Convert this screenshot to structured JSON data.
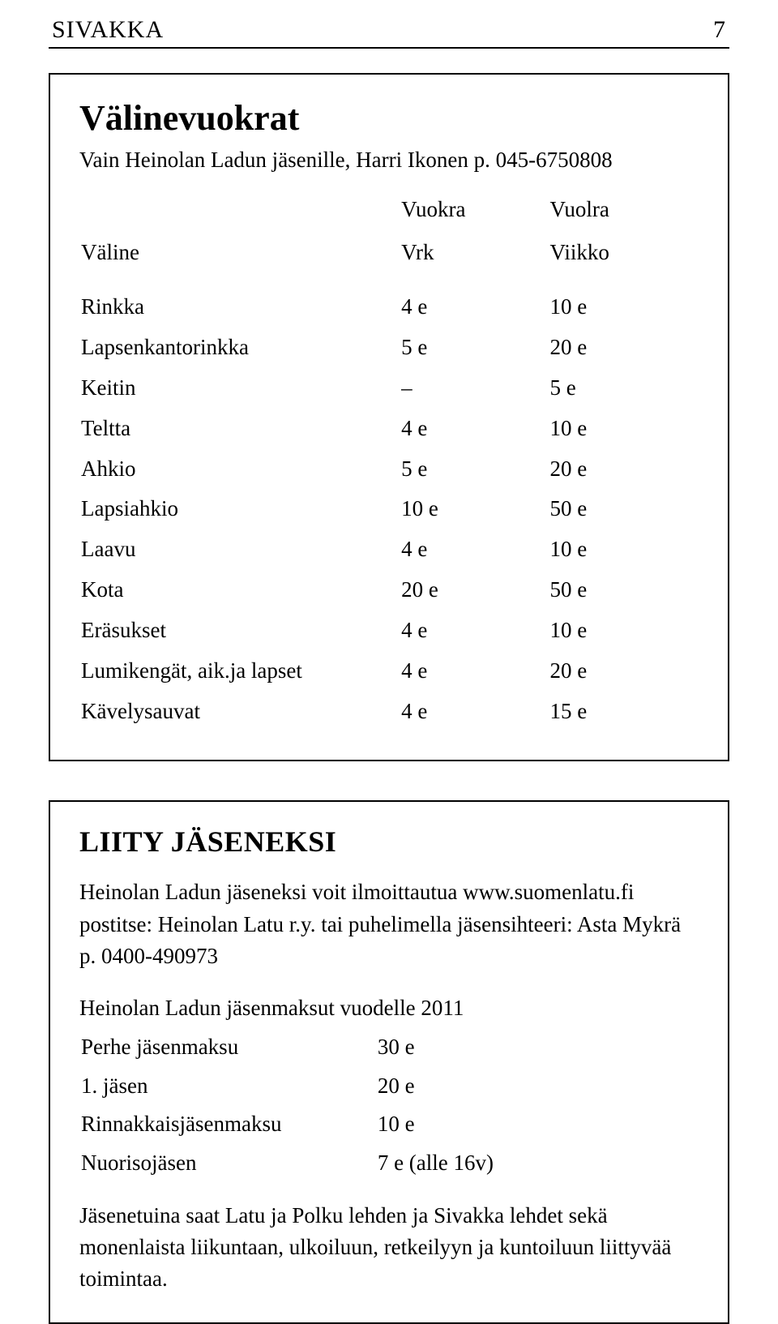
{
  "header": {
    "title": "SIVAKKA",
    "page_num": "7"
  },
  "box1": {
    "title": "Välinevuokrat",
    "subline": "Vain Heinolan Ladun jäsenille, Harri Ikonen p. 045-6750808",
    "col_headers": {
      "valine": "Väline",
      "vuokra": "Vuokra",
      "vuolra": "Vuolra",
      "vrk": "Vrk",
      "viikko": "Viikko"
    },
    "rows": [
      {
        "label": "Rinkka",
        "vrk": "4 e",
        "viikko": "10 e"
      },
      {
        "label": "Lapsenkantorinkka",
        "vrk": "5 e",
        "viikko": "20 e"
      },
      {
        "label": "Keitin",
        "vrk": "–",
        "viikko": "5 e"
      },
      {
        "label": "Teltta",
        "vrk": "4 e",
        "viikko": "10 e"
      },
      {
        "label": "Ahkio",
        "vrk": "5 e",
        "viikko": "20 e"
      },
      {
        "label": "Lapsiahkio",
        "vrk": "10 e",
        "viikko": "50 e"
      },
      {
        "label": "Laavu",
        "vrk": "4 e",
        "viikko": "10 e"
      },
      {
        "label": "Kota",
        "vrk": "20 e",
        "viikko": "50 e"
      },
      {
        "label": "Eräsukset",
        "vrk": "4 e",
        "viikko": "10 e"
      },
      {
        "label": "Lumikengät, aik.ja lapset",
        "vrk": "4 e",
        "viikko": "20 e"
      },
      {
        "label": "Kävelysauvat",
        "vrk": "4 e",
        "viikko": "15 e"
      }
    ]
  },
  "box2": {
    "title": "LIITY JÄSENEKSI",
    "para1": "Heinolan Ladun jäseneksi voit ilmoittautua www.suomenlatu.fi postitse: Heinolan Latu r.y. tai puhelimella jäsensihteeri:  Asta Mykrä p. 0400-490973",
    "fees_title": "Heinolan Ladun jäsenmaksut vuodelle 2011",
    "fees": [
      {
        "label": "Perhe  jäsenmaksu",
        "value": "30 e"
      },
      {
        "label": "1. jäsen",
        "value": "20 e"
      },
      {
        "label": "Rinnakkaisjäsenmaksu",
        "value": "10 e"
      },
      {
        "label": "Nuorisojäsen",
        "value": "  7 e  (alle 16v)"
      }
    ],
    "para2": "Jäsenetuina saat Latu ja Polku lehden ja Sivakka lehdet sekä monenlaista liikuntaan, ulkoiluun, retkeilyyn ja kuntoiluun liittyvää  toimintaa."
  },
  "colors": {
    "background": "#ffffff",
    "text": "#000000",
    "border": "#000000"
  }
}
